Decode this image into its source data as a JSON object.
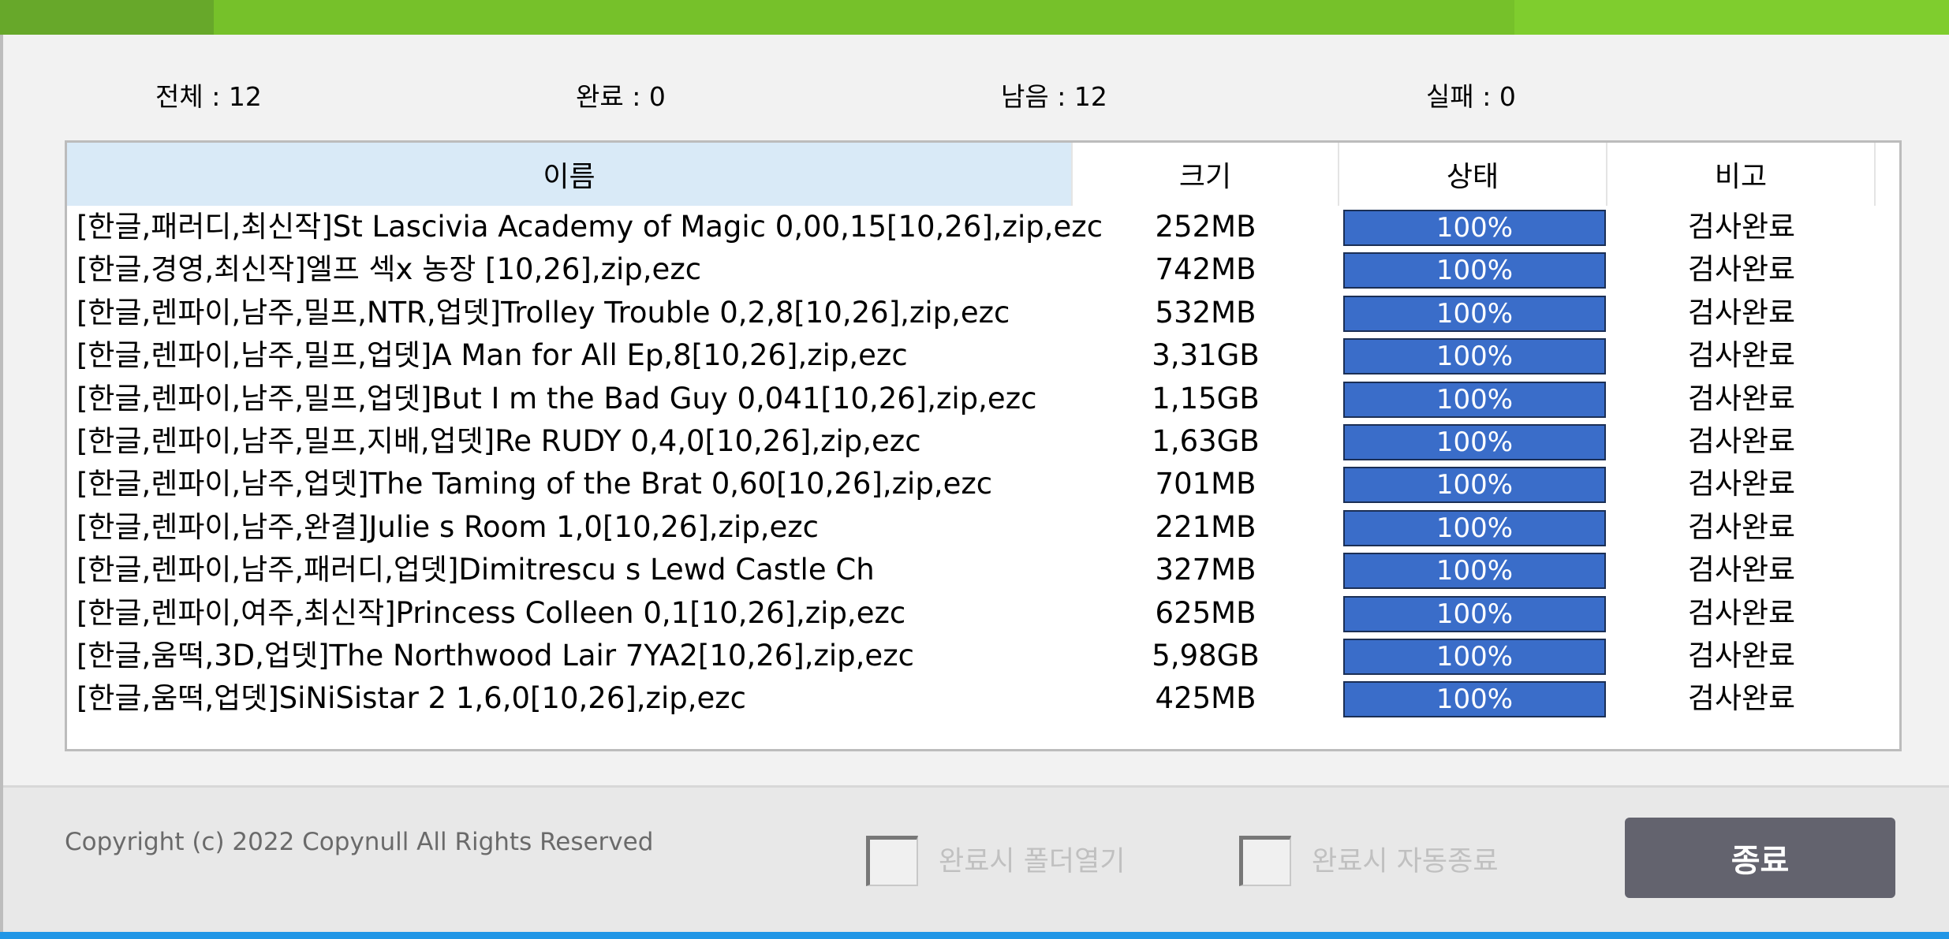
{
  "colors": {
    "accent_green": "#76c12a",
    "progress_blue": "#3a6dc9",
    "button": "#63636e",
    "header_selected": "#d9eaf7"
  },
  "stats": {
    "total": "전체 : 12",
    "done": "완료 : 0",
    "remaining": "남음 : 12",
    "failed": "실패 : 0"
  },
  "columns": [
    "이름",
    "크기",
    "상태",
    "비고"
  ],
  "rows": [
    {
      "name": "[한글,패러디,최신작]St Lascivia Academy of Magic 0,00,15[10,26],zip,ezc",
      "size": "252MB",
      "progress": 100,
      "progress_label": "100%",
      "note": "검사완료"
    },
    {
      "name": "[한글,경영,최신작]엘프 섹x 농장 [10,26],zip,ezc",
      "size": "742MB",
      "progress": 100,
      "progress_label": "100%",
      "note": "검사완료"
    },
    {
      "name": "[한글,렌파이,남주,밀프,NTR,업뎃]Trolley Trouble 0,2,8[10,26],zip,ezc",
      "size": "532MB",
      "progress": 100,
      "progress_label": "100%",
      "note": "검사완료"
    },
    {
      "name": "[한글,렌파이,남주,밀프,업뎃]A Man for All Ep,8[10,26],zip,ezc",
      "size": "3,31GB",
      "progress": 100,
      "progress_label": "100%",
      "note": "검사완료"
    },
    {
      "name": "[한글,렌파이,남주,밀프,업뎃]But I m the Bad Guy 0,041[10,26],zip,ezc",
      "size": "1,15GB",
      "progress": 100,
      "progress_label": "100%",
      "note": "검사완료"
    },
    {
      "name": "[한글,렌파이,남주,밀프,지배,업뎃]Re RUDY 0,4,0[10,26],zip,ezc",
      "size": "1,63GB",
      "progress": 100,
      "progress_label": "100%",
      "note": "검사완료"
    },
    {
      "name": "[한글,렌파이,남주,업뎃]The Taming of the Brat 0,60[10,26],zip,ezc",
      "size": "701MB",
      "progress": 100,
      "progress_label": "100%",
      "note": "검사완료"
    },
    {
      "name": "[한글,렌파이,남주,완결]Julie s Room 1,0[10,26],zip,ezc",
      "size": "221MB",
      "progress": 100,
      "progress_label": "100%",
      "note": "검사완료"
    },
    {
      "name": "[한글,렌파이,남주,패러디,업뎃]Dimitrescu s Lewd Castle Ch",
      "size": "327MB",
      "progress": 100,
      "progress_label": "100%",
      "note": "검사완료"
    },
    {
      "name": "[한글,렌파이,여주,최신작]Princess Colleen 0,1[10,26],zip,ezc",
      "size": "625MB",
      "progress": 100,
      "progress_label": "100%",
      "note": "검사완료"
    },
    {
      "name": "[한글,움떡,3D,업뎃]The Northwood Lair 7YA2[10,26],zip,ezc",
      "size": "5,98GB",
      "progress": 100,
      "progress_label": "100%",
      "note": "검사완료"
    },
    {
      "name": "[한글,움떡,업뎃]SiNiSistar 2 1,6,0[10,26],zip,ezc",
      "size": "425MB",
      "progress": 100,
      "progress_label": "100%",
      "note": "검사완료"
    }
  ],
  "footer": {
    "copyright": "Copyright (c) 2022 Copynull All Rights Reserved",
    "open_folder_label": "완료시 폴더열기",
    "open_folder_checked": false,
    "auto_exit_label": "완료시 자동종료",
    "auto_exit_checked": false,
    "exit_button": "종료"
  }
}
